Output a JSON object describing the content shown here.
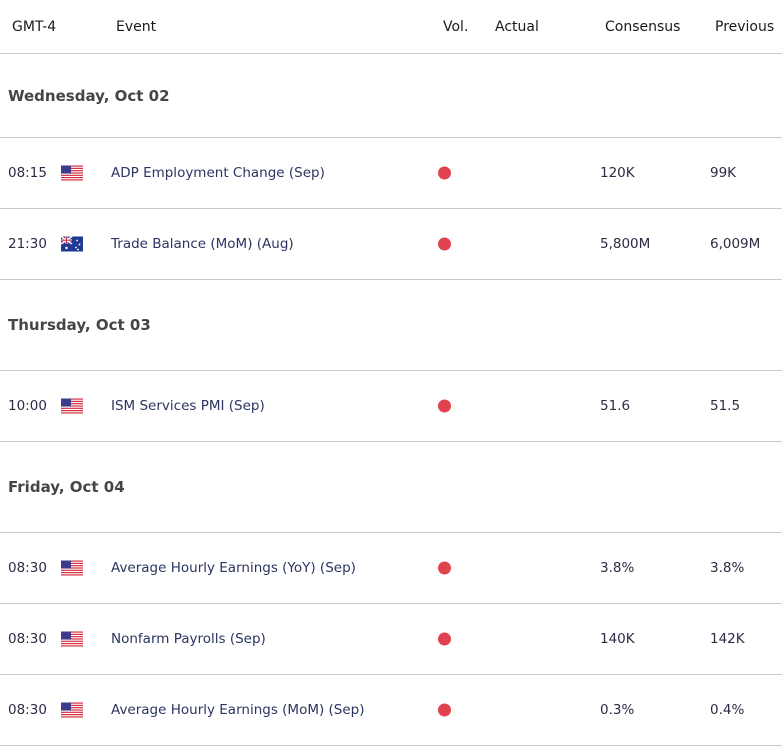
{
  "header": {
    "time": "GMT-4",
    "event": "Event",
    "vol": "Vol.",
    "actual": "Actual",
    "consensus": "Consensus",
    "previous": "Previous"
  },
  "colors": {
    "volatility_high": "#e0434f"
  },
  "days": [
    {
      "label": "Wednesday, Oct 02",
      "events": [
        {
          "time": "08:15",
          "country": "US",
          "flag": "us-flag-icon",
          "name": "ADP Employment Change (Sep)",
          "actual": "",
          "consensus": "120K",
          "previous": "99K"
        },
        {
          "time": "21:30",
          "country": "AU",
          "flag": "au-flag-icon",
          "name": "Trade Balance (MoM) (Aug)",
          "actual": "",
          "consensus": "5,800M",
          "previous": "6,009M"
        }
      ]
    },
    {
      "label": "Thursday, Oct 03",
      "events": [
        {
          "time": "10:00",
          "country": "US",
          "flag": "us-flag-icon",
          "name": "ISM Services PMI (Sep)",
          "actual": "",
          "consensus": "51.6",
          "previous": "51.5"
        }
      ]
    },
    {
      "label": "Friday, Oct 04",
      "events": [
        {
          "time": "08:30",
          "country": "US",
          "flag": "us-flag-icon",
          "name": "Average Hourly Earnings (YoY) (Sep)",
          "actual": "",
          "consensus": "3.8%",
          "previous": "3.8%"
        },
        {
          "time": "08:30",
          "country": "US",
          "flag": "us-flag-icon",
          "name": "Nonfarm Payrolls (Sep)",
          "actual": "",
          "consensus": "140K",
          "previous": "142K"
        },
        {
          "time": "08:30",
          "country": "US",
          "flag": "us-flag-icon",
          "name": "Average Hourly Earnings (MoM) (Sep)",
          "actual": "",
          "consensus": "0.3%",
          "previous": "0.4%"
        }
      ]
    }
  ]
}
